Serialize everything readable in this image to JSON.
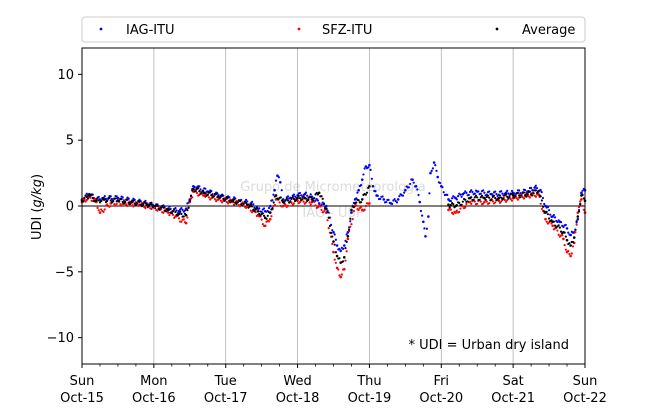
{
  "chart_data": {
    "type": "scatter",
    "title": "",
    "xlabel": "",
    "ylabel_main": "UDI (",
    "ylabel_unit": "g/kg",
    "ylabel_close": ")",
    "xlim": [
      0,
      7
    ],
    "ylim": [
      -12,
      12
    ],
    "grid": "vertical lines at each day",
    "legend_placement": "top, above plot, 3 columns",
    "x_ticks": [
      {
        "x": 0,
        "day": "Sun",
        "date": "Oct-15"
      },
      {
        "x": 1,
        "day": "Mon",
        "date": "Oct-16"
      },
      {
        "x": 2,
        "day": "Tue",
        "date": "Oct-17"
      },
      {
        "x": 3,
        "day": "Wed",
        "date": "Oct-18"
      },
      {
        "x": 4,
        "day": "Thu",
        "date": "Oct-19"
      },
      {
        "x": 5,
        "day": "Fri",
        "date": "Oct-20"
      },
      {
        "x": 6,
        "day": "Sat",
        "date": "Oct-21"
      },
      {
        "x": 7,
        "day": "Sun",
        "date": "Oct-22"
      }
    ],
    "y_ticks": [
      {
        "y": 10,
        "label": "10"
      },
      {
        "y": 5,
        "label": "5"
      },
      {
        "y": 0,
        "label": "0"
      },
      {
        "y": -5,
        "label": "−5"
      },
      {
        "y": -10,
        "label": "−10"
      }
    ],
    "annotation": "* UDI = Urban dry island",
    "watermark": [
      "Grupo de Micrometeorologia",
      "IAG - USP"
    ],
    "series": [
      {
        "name": "IAG-ITU",
        "color": "#0000ff",
        "points": [
          [
            0.0,
            0.5
          ],
          [
            0.1,
            0.9
          ],
          [
            0.2,
            0.5
          ],
          [
            0.3,
            0.6
          ],
          [
            0.5,
            0.6
          ],
          [
            0.7,
            0.4
          ],
          [
            0.9,
            0.2
          ],
          [
            1.0,
            0.0
          ],
          [
            1.2,
            -0.2
          ],
          [
            1.35,
            -0.4
          ],
          [
            1.45,
            -0.2
          ],
          [
            1.5,
            0.5
          ],
          [
            1.55,
            1.5
          ],
          [
            1.6,
            1.4
          ],
          [
            1.75,
            1.1
          ],
          [
            1.9,
            0.8
          ],
          [
            2.0,
            0.6
          ],
          [
            2.2,
            0.4
          ],
          [
            2.35,
            0.2
          ],
          [
            2.45,
            -0.2
          ],
          [
            2.55,
            -0.4
          ],
          [
            2.62,
            0.0
          ],
          [
            2.68,
            1.2
          ],
          [
            2.72,
            2.3
          ],
          [
            2.76,
            1.8
          ],
          [
            2.8,
            0.5
          ],
          [
            2.9,
            0.6
          ],
          [
            3.0,
            0.8
          ],
          [
            3.1,
            0.9
          ],
          [
            3.2,
            0.7
          ],
          [
            3.3,
            0.2
          ],
          [
            3.4,
            0.0
          ],
          [
            3.5,
            -2.0
          ],
          [
            3.55,
            -3.0
          ],
          [
            3.6,
            -3.4
          ],
          [
            3.65,
            -3.0
          ],
          [
            3.7,
            -2.0
          ],
          [
            3.75,
            -0.5
          ],
          [
            3.8,
            0.5
          ],
          [
            3.85,
            1.2
          ],
          [
            3.9,
            2.0
          ],
          [
            3.95,
            3.0
          ],
          [
            4.0,
            3.1
          ],
          [
            4.05,
            1.5
          ],
          [
            4.1,
            0.8
          ],
          [
            4.2,
            0.5
          ],
          [
            4.3,
            0.2
          ],
          [
            4.4,
            0.5
          ],
          [
            4.5,
            1.2
          ],
          [
            4.6,
            2.0
          ],
          [
            4.65,
            1.5
          ],
          [
            4.7,
            0.3
          ],
          [
            4.75,
            -1.2
          ],
          [
            4.78,
            -2.3
          ],
          [
            4.82,
            -0.8
          ],
          [
            4.85,
            2.5
          ],
          [
            4.9,
            3.3
          ],
          [
            4.95,
            2.2
          ],
          [
            5.0,
            1.5
          ],
          [
            5.1,
            0.5
          ],
          [
            5.2,
            0.6
          ],
          [
            5.3,
            0.9
          ],
          [
            5.5,
            1.1
          ],
          [
            5.7,
            0.9
          ],
          [
            5.9,
            1.0
          ],
          [
            6.0,
            1.0
          ],
          [
            6.2,
            1.1
          ],
          [
            6.3,
            1.4
          ],
          [
            6.38,
            1.2
          ],
          [
            6.45,
            0.0
          ],
          [
            6.55,
            -0.8
          ],
          [
            6.65,
            -1.2
          ],
          [
            6.75,
            -1.7
          ],
          [
            6.8,
            -2.2
          ],
          [
            6.85,
            -2.0
          ],
          [
            6.9,
            -1.0
          ],
          [
            6.95,
            1.0
          ],
          [
            7.0,
            1.2
          ]
        ]
      },
      {
        "name": "SFZ-ITU",
        "color": "#ff0000",
        "points": [
          [
            0.0,
            0.3
          ],
          [
            0.1,
            0.7
          ],
          [
            0.2,
            0.3
          ],
          [
            0.25,
            -0.5
          ],
          [
            0.4,
            0.2
          ],
          [
            0.6,
            0.2
          ],
          [
            0.8,
            0.1
          ],
          [
            1.0,
            -0.1
          ],
          [
            1.2,
            -0.5
          ],
          [
            1.3,
            -0.8
          ],
          [
            1.45,
            -1.3
          ],
          [
            1.5,
            0.3
          ],
          [
            1.55,
            1.1
          ],
          [
            1.7,
            0.8
          ],
          [
            1.9,
            0.5
          ],
          [
            2.1,
            0.3
          ],
          [
            2.3,
            0.0
          ],
          [
            2.45,
            -0.7
          ],
          [
            2.55,
            -1.5
          ],
          [
            2.62,
            -1.0
          ],
          [
            2.7,
            0.5
          ],
          [
            2.8,
            0.0
          ],
          [
            3.0,
            0.4
          ],
          [
            3.2,
            0.3
          ],
          [
            3.4,
            -0.5
          ],
          [
            3.5,
            -3.5
          ],
          [
            3.55,
            -4.7
          ],
          [
            3.6,
            -5.4
          ],
          [
            3.65,
            -4.8
          ],
          [
            3.7,
            -2.5
          ],
          [
            3.8,
            0.0
          ],
          [
            3.9,
            -0.3
          ],
          [
            4.0,
            0.2
          ],
          [
            5.1,
            -0.3
          ],
          [
            5.2,
            -0.5
          ],
          [
            5.4,
            0.3
          ],
          [
            5.6,
            0.3
          ],
          [
            5.8,
            0.4
          ],
          [
            6.0,
            0.6
          ],
          [
            6.2,
            0.8
          ],
          [
            6.35,
            0.9
          ],
          [
            6.45,
            -1.0
          ],
          [
            6.55,
            -1.5
          ],
          [
            6.7,
            -2.5
          ],
          [
            6.75,
            -3.5
          ],
          [
            6.8,
            -3.8
          ],
          [
            6.85,
            -2.8
          ],
          [
            6.9,
            -0.5
          ],
          [
            6.95,
            0.5
          ],
          [
            7.0,
            -0.5
          ]
        ]
      },
      {
        "name": "Average",
        "color": "#000000",
        "points": [
          [
            0.0,
            0.4
          ],
          [
            0.1,
            0.8
          ],
          [
            0.2,
            0.4
          ],
          [
            0.3,
            0.5
          ],
          [
            0.5,
            0.4
          ],
          [
            0.7,
            0.3
          ],
          [
            0.9,
            0.1
          ],
          [
            1.0,
            0.0
          ],
          [
            1.2,
            -0.3
          ],
          [
            1.35,
            -0.6
          ],
          [
            1.45,
            -0.7
          ],
          [
            1.5,
            0.4
          ],
          [
            1.55,
            1.3
          ],
          [
            1.7,
            1.0
          ],
          [
            1.9,
            0.7
          ],
          [
            2.1,
            0.4
          ],
          [
            2.3,
            0.1
          ],
          [
            2.45,
            -0.4
          ],
          [
            2.55,
            -0.9
          ],
          [
            2.62,
            -0.5
          ],
          [
            2.7,
            0.8
          ],
          [
            2.8,
            0.3
          ],
          [
            3.0,
            0.6
          ],
          [
            3.1,
            0.6
          ],
          [
            3.2,
            0.5
          ],
          [
            3.3,
            1.0
          ],
          [
            3.4,
            -0.2
          ],
          [
            3.5,
            -2.7
          ],
          [
            3.55,
            -3.8
          ],
          [
            3.6,
            -4.3
          ],
          [
            3.65,
            -3.9
          ],
          [
            3.7,
            -2.3
          ],
          [
            3.75,
            -0.3
          ],
          [
            3.8,
            0.2
          ],
          [
            3.9,
            0.5
          ],
          [
            4.0,
            1.5
          ],
          [
            5.1,
            0.1
          ],
          [
            5.2,
            0.0
          ],
          [
            5.4,
            0.6
          ],
          [
            5.6,
            0.6
          ],
          [
            5.8,
            0.6
          ],
          [
            6.0,
            0.8
          ],
          [
            6.2,
            0.9
          ],
          [
            6.35,
            1.1
          ],
          [
            6.45,
            -0.5
          ],
          [
            6.55,
            -1.2
          ],
          [
            6.7,
            -2.0
          ],
          [
            6.75,
            -2.6
          ],
          [
            6.8,
            -3.0
          ],
          [
            6.85,
            -2.4
          ],
          [
            6.9,
            -0.8
          ],
          [
            6.95,
            0.8
          ],
          [
            7.0,
            0.4
          ]
        ]
      }
    ]
  }
}
